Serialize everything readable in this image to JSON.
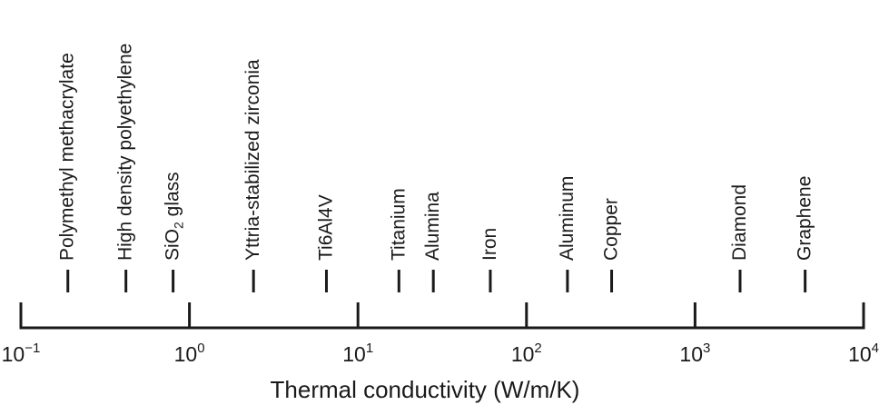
{
  "chart_data": {
    "type": "scatter",
    "xlabel": "Thermal conductivity (W/m/K)",
    "xscale": "log",
    "xlim": [
      0.1,
      10000
    ],
    "ticks": [
      {
        "value": 0.1,
        "base": "10",
        "exp": "−1"
      },
      {
        "value": 1,
        "base": "10",
        "exp": "0"
      },
      {
        "value": 10,
        "base": "10",
        "exp": "1"
      },
      {
        "value": 100,
        "base": "10",
        "exp": "2"
      },
      {
        "value": 1000,
        "base": "10",
        "exp": "3"
      },
      {
        "value": 10000,
        "base": "10",
        "exp": "4"
      }
    ],
    "series": [
      {
        "points": [
          {
            "label": "Polymethyl methacrylate",
            "x": 0.19
          },
          {
            "label": "High density polyethylene",
            "x": 0.42
          },
          {
            "label": "SiO",
            "label_sub": "2",
            "label_after": " glass",
            "x": 0.8
          },
          {
            "label": "Yttria-stabilized zirconia",
            "x": 2.4
          },
          {
            "label": "Ti6Al4V",
            "x": 6.5
          },
          {
            "label": "Titanium",
            "x": 17.5
          },
          {
            "label": "Alumina",
            "x": 28
          },
          {
            "label": "Iron",
            "x": 61
          },
          {
            "label": "Aluminum",
            "x": 175
          },
          {
            "label": "Copper",
            "x": 320
          },
          {
            "label": "Diamond",
            "x": 1850
          },
          {
            "label": "Graphene",
            "x": 4500
          }
        ]
      }
    ]
  }
}
